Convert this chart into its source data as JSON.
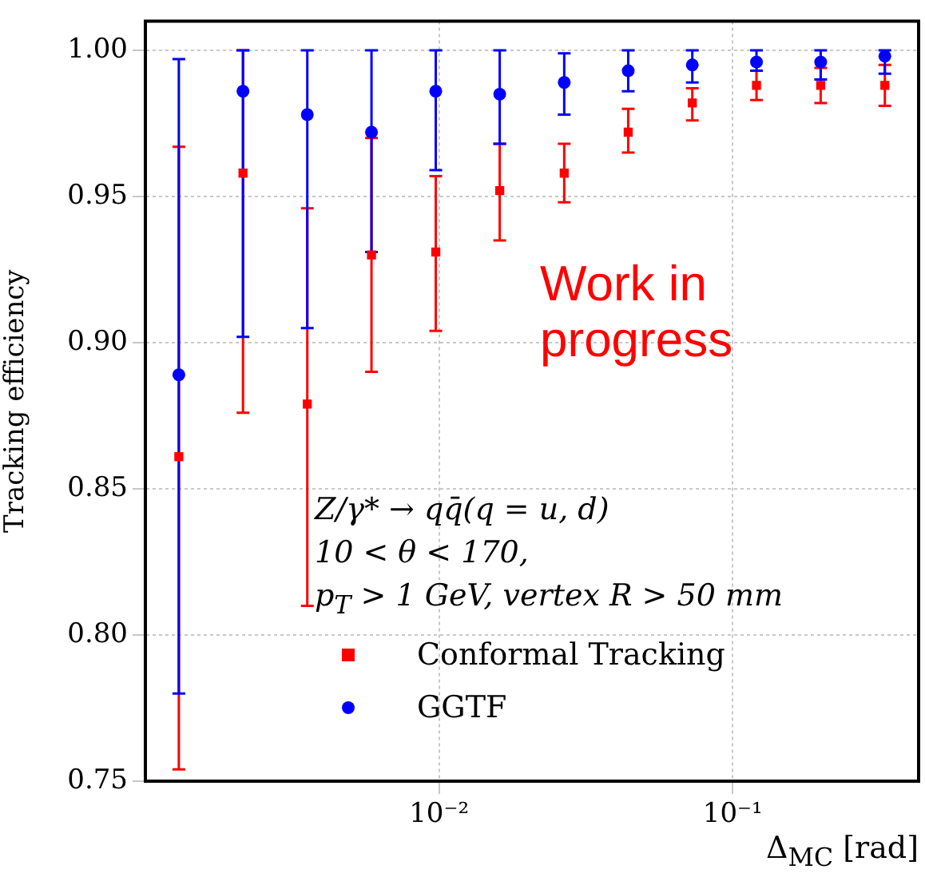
{
  "chart_data": {
    "type": "scatter",
    "xlabel": "Δ$_{MC}$ [rad]",
    "ylabel": "Tracking efficiency",
    "x": [
      0.0013,
      0.00215,
      0.00356,
      0.00589,
      0.00975,
      0.0161,
      0.0267,
      0.0441,
      0.0729,
      0.1206,
      0.1995,
      0.33
    ],
    "series": [
      {
        "name": "Conformal Tracking",
        "color": "#ff0000",
        "marker": "square",
        "values": [
          0.861,
          0.958,
          0.879,
          0.93,
          0.931,
          0.952,
          0.958,
          0.972,
          0.982,
          0.988,
          0.988,
          0.988
        ],
        "errors": [
          [
            0.754,
            0.967
          ],
          [
            0.876,
            1.0
          ],
          [
            0.81,
            0.946
          ],
          [
            0.89,
            0.97
          ],
          [
            0.904,
            0.957
          ],
          [
            0.935,
            0.968
          ],
          [
            0.948,
            0.968
          ],
          [
            0.965,
            0.98
          ],
          [
            0.976,
            0.987
          ],
          [
            0.983,
            0.993
          ],
          [
            0.982,
            0.994
          ],
          [
            0.981,
            0.995
          ]
        ]
      },
      {
        "name": "GGTF",
        "color": "#0000ff",
        "marker": "circle",
        "values": [
          0.889,
          0.986,
          0.978,
          0.972,
          0.986,
          0.985,
          0.989,
          0.993,
          0.995,
          0.996,
          0.996,
          0.998
        ],
        "errors": [
          [
            0.78,
            0.997
          ],
          [
            0.902,
            1.0
          ],
          [
            0.905,
            1.0
          ],
          [
            0.931,
            1.0
          ],
          [
            0.959,
            1.0
          ],
          [
            0.968,
            1.0
          ],
          [
            0.978,
            0.999
          ],
          [
            0.986,
            1.0
          ],
          [
            0.989,
            1.0
          ],
          [
            0.993,
            1.0
          ],
          [
            0.99,
            1.0
          ],
          [
            0.992,
            1.0
          ]
        ]
      }
    ],
    "log": "x",
    "xlim": [
      0.001,
      0.43
    ],
    "xticks": [
      {
        "value": 0.01,
        "label": "10⁻²"
      },
      {
        "value": 0.1,
        "label": "10⁻¹"
      }
    ],
    "ylim": [
      0.75,
      1.01
    ],
    "yticks": [
      {
        "value": 0.75,
        "label": "0.75"
      },
      {
        "value": 0.8,
        "label": "0.80"
      },
      {
        "value": 0.85,
        "label": "0.85"
      },
      {
        "value": 0.9,
        "label": "0.90"
      },
      {
        "value": 0.95,
        "label": "0.95"
      },
      {
        "value": 1.0,
        "label": "1.00"
      }
    ],
    "grid": true,
    "legend": "bottom left",
    "annotations": [
      "Z/γ* → qq̄(q = u, d)",
      "10 < θ < 170,",
      "p$_{T}$ > 1 GeV, vertex R > 50 mm",
      "Work in progress"
    ]
  }
}
